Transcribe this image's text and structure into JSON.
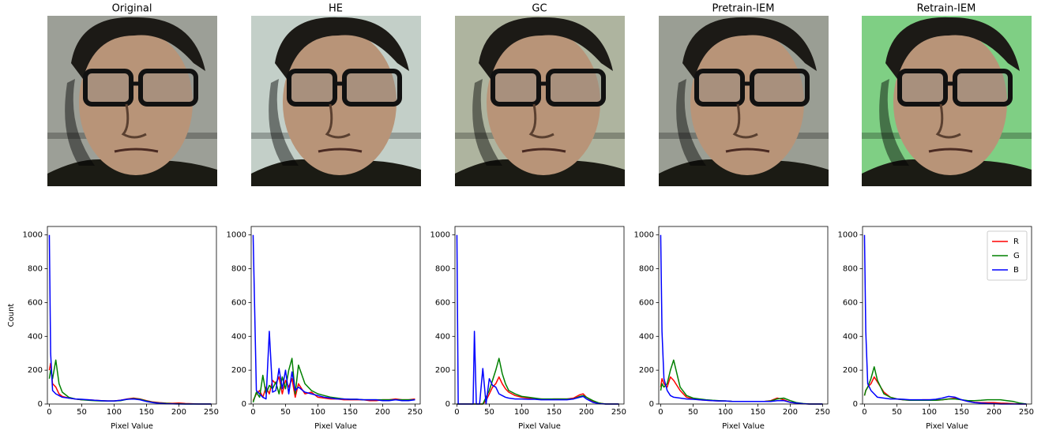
{
  "image_titles": [
    "Original",
    "HE",
    "GC",
    "Pretrain-IEM",
    "Retrain-IEM"
  ],
  "chart_data": [
    {
      "type": "line",
      "xlabel": "Pixel Value",
      "ylabel": "Count",
      "x": [
        0,
        2,
        5,
        10,
        15,
        20,
        30,
        40,
        50,
        60,
        70,
        80,
        90,
        100,
        110,
        120,
        130,
        140,
        150,
        160,
        170,
        180,
        190,
        200,
        210,
        220,
        230,
        240,
        250
      ],
      "series": [
        {
          "color": "#ff0000",
          "values": [
            200,
            240,
            120,
            100,
            60,
            45,
            35,
            30,
            25,
            25,
            22,
            20,
            18,
            18,
            22,
            30,
            35,
            30,
            20,
            12,
            8,
            5,
            4,
            6,
            3,
            2,
            0,
            0,
            0
          ]
        },
        {
          "color": "#008000",
          "values": [
            150,
            200,
            150,
            260,
            120,
            70,
            40,
            30,
            25,
            22,
            20,
            18,
            18,
            18,
            20,
            28,
            32,
            28,
            18,
            10,
            6,
            4,
            2,
            2,
            0,
            0,
            0,
            0,
            0
          ]
        },
        {
          "color": "#0000ff",
          "values": [
            1000,
            300,
            80,
            60,
            50,
            40,
            35,
            30,
            28,
            25,
            22,
            20,
            18,
            18,
            22,
            28,
            30,
            25,
            15,
            8,
            4,
            2,
            1,
            0,
            0,
            0,
            0,
            0,
            0
          ]
        }
      ],
      "xlim": [
        -3,
        258
      ],
      "ylim": [
        0,
        1050
      ],
      "xticks": [
        0,
        50,
        100,
        150,
        200,
        250
      ],
      "yticks": [
        0,
        200,
        400,
        600,
        800,
        1000
      ]
    },
    {
      "type": "line",
      "xlabel": "Pixel Value",
      "x": [
        0,
        5,
        10,
        15,
        20,
        25,
        30,
        35,
        40,
        45,
        50,
        55,
        60,
        65,
        70,
        80,
        90,
        100,
        110,
        120,
        130,
        140,
        150,
        160,
        170,
        180,
        190,
        200,
        210,
        220,
        230,
        240,
        250
      ],
      "series": [
        {
          "color": "#ff0000",
          "values": [
            20,
            60,
            80,
            40,
            100,
            60,
            140,
            120,
            160,
            60,
            140,
            100,
            150,
            40,
            120,
            60,
            70,
            40,
            35,
            30,
            30,
            25,
            25,
            25,
            25,
            20,
            20,
            25,
            25,
            30,
            25,
            25,
            30
          ]
        },
        {
          "color": "#008000",
          "values": [
            10,
            70,
            40,
            170,
            60,
            110,
            90,
            130,
            60,
            160,
            90,
            200,
            270,
            60,
            230,
            120,
            80,
            60,
            50,
            40,
            35,
            30,
            28,
            28,
            25,
            25,
            25,
            25,
            25,
            25,
            25,
            25,
            25
          ]
        },
        {
          "color": "#0000ff",
          "values": [
            1000,
            80,
            60,
            40,
            30,
            430,
            70,
            80,
            210,
            90,
            200,
            60,
            190,
            80,
            100,
            70,
            60,
            50,
            40,
            35,
            30,
            30,
            28,
            28,
            25,
            25,
            25,
            20,
            20,
            25,
            20,
            20,
            25
          ]
        }
      ],
      "xlim": [
        -3,
        258
      ],
      "ylim": [
        0,
        1050
      ],
      "xticks": [
        0,
        50,
        100,
        150,
        200,
        250
      ],
      "yticks": [
        0,
        200,
        400,
        600,
        800,
        1000
      ]
    },
    {
      "type": "line",
      "xlabel": "Pixel Value",
      "x": [
        0,
        2,
        5,
        10,
        20,
        25,
        27,
        30,
        35,
        40,
        45,
        50,
        55,
        60,
        65,
        70,
        75,
        80,
        90,
        100,
        110,
        120,
        130,
        140,
        150,
        160,
        170,
        180,
        190,
        195,
        200,
        210,
        220,
        230,
        240,
        250
      ],
      "series": [
        {
          "color": "#ff0000",
          "values": [
            0,
            0,
            0,
            0,
            0,
            0,
            0,
            0,
            0,
            0,
            20,
            60,
            100,
            120,
            160,
            120,
            90,
            70,
            50,
            40,
            35,
            30,
            30,
            28,
            30,
            30,
            30,
            35,
            55,
            60,
            40,
            15,
            5,
            0,
            0,
            0
          ]
        },
        {
          "color": "#008000",
          "values": [
            0,
            0,
            0,
            0,
            0,
            0,
            0,
            0,
            0,
            0,
            40,
            80,
            140,
            200,
            270,
            180,
            120,
            80,
            60,
            45,
            40,
            35,
            30,
            30,
            30,
            30,
            30,
            30,
            45,
            50,
            40,
            20,
            5,
            0,
            0,
            0
          ]
        },
        {
          "color": "#0000ff",
          "values": [
            1000,
            0,
            0,
            0,
            0,
            0,
            430,
            0,
            0,
            210,
            0,
            150,
            110,
            100,
            60,
            50,
            40,
            35,
            30,
            30,
            28,
            28,
            25,
            25,
            25,
            25,
            25,
            30,
            40,
            45,
            30,
            10,
            2,
            0,
            0,
            0
          ]
        }
      ],
      "xlim": [
        -3,
        258
      ],
      "ylim": [
        0,
        1050
      ],
      "xticks": [
        0,
        50,
        100,
        150,
        200,
        250
      ],
      "yticks": [
        0,
        200,
        400,
        600,
        800,
        1000
      ]
    },
    {
      "type": "line",
      "xlabel": "Pixel Value",
      "x": [
        0,
        2,
        5,
        10,
        15,
        20,
        30,
        40,
        50,
        60,
        70,
        80,
        90,
        100,
        110,
        120,
        130,
        140,
        150,
        160,
        170,
        180,
        190,
        200,
        210,
        220,
        230,
        240,
        250
      ],
      "series": [
        {
          "color": "#ff0000",
          "values": [
            100,
            150,
            120,
            100,
            160,
            140,
            80,
            40,
            30,
            25,
            22,
            20,
            18,
            18,
            15,
            15,
            15,
            15,
            15,
            15,
            20,
            35,
            25,
            10,
            5,
            2,
            0,
            0,
            0
          ]
        },
        {
          "color": "#008000",
          "values": [
            80,
            120,
            100,
            120,
            200,
            260,
            100,
            50,
            35,
            30,
            25,
            22,
            20,
            18,
            16,
            15,
            15,
            15,
            15,
            15,
            18,
            30,
            35,
            20,
            8,
            3,
            0,
            0,
            0
          ]
        },
        {
          "color": "#0000ff",
          "values": [
            1000,
            430,
            150,
            80,
            50,
            40,
            35,
            30,
            28,
            25,
            22,
            20,
            18,
            18,
            16,
            15,
            15,
            15,
            15,
            15,
            15,
            20,
            20,
            10,
            5,
            2,
            0,
            0,
            0
          ]
        }
      ],
      "xlim": [
        -3,
        258
      ],
      "ylim": [
        0,
        1050
      ],
      "xticks": [
        0,
        50,
        100,
        150,
        200,
        250
      ],
      "yticks": [
        0,
        200,
        400,
        600,
        800,
        1000
      ]
    },
    {
      "type": "line",
      "xlabel": "Pixel Value",
      "legend": "upper right",
      "x": [
        0,
        2,
        5,
        10,
        15,
        20,
        30,
        40,
        50,
        60,
        70,
        80,
        90,
        100,
        110,
        120,
        130,
        140,
        150,
        160,
        170,
        180,
        190,
        200,
        210,
        220,
        230,
        240,
        250
      ],
      "series": [
        {
          "name": "R",
          "color": "#ff0000",
          "values": [
            50,
            80,
            100,
            120,
            160,
            130,
            70,
            40,
            30,
            25,
            22,
            22,
            25,
            25,
            22,
            25,
            30,
            35,
            25,
            15,
            10,
            8,
            8,
            8,
            5,
            4,
            2,
            0,
            0
          ]
        },
        {
          "name": "G",
          "color": "#008000",
          "values": [
            50,
            80,
            100,
            150,
            220,
            140,
            60,
            40,
            30,
            25,
            22,
            22,
            22,
            22,
            22,
            25,
            30,
            30,
            25,
            20,
            20,
            22,
            25,
            25,
            25,
            20,
            15,
            5,
            0
          ]
        },
        {
          "name": "B",
          "color": "#0000ff",
          "values": [
            1000,
            430,
            120,
            80,
            60,
            40,
            35,
            30,
            30,
            28,
            25,
            25,
            25,
            25,
            28,
            35,
            45,
            40,
            25,
            15,
            8,
            5,
            3,
            2,
            0,
            0,
            0,
            0,
            0
          ]
        }
      ],
      "xlim": [
        -3,
        258
      ],
      "ylim": [
        0,
        1050
      ],
      "xticks": [
        0,
        50,
        100,
        150,
        200,
        250
      ],
      "yticks": [
        0,
        200,
        400,
        600,
        800,
        1000
      ]
    }
  ]
}
